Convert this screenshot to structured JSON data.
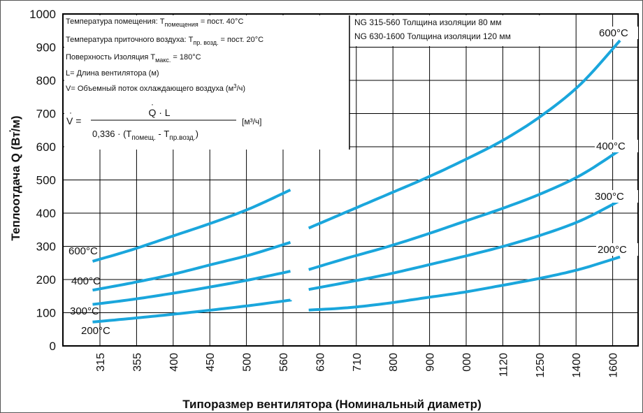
{
  "chart_data": {
    "type": "line",
    "xlabel": "Типоразмер вентилятора (Номинальный диаметр)",
    "ylabel": "Теплоотдача Q (Вт/м)",
    "categories": [
      "315",
      "355",
      "400",
      "450",
      "500",
      "560",
      "630",
      "710",
      "800",
      "900",
      "000",
      "1120",
      "1250",
      "1400",
      "1600"
    ],
    "ylim": [
      0,
      1000
    ],
    "yticks": [
      "0",
      "100",
      "200",
      "300",
      "400",
      "500",
      "600",
      "700",
      "800",
      "900",
      "1000"
    ],
    "grid": true,
    "line_color": "#1aa6dc",
    "series": [
      {
        "name": "600°C",
        "groups": [
          {
            "x0": -0.2,
            "x1": 5.2,
            "values": [
              255,
              290,
              330,
              370,
              415,
              470
            ]
          },
          {
            "x0": 5.7,
            "x1": 14.2,
            "values": [
              355,
              405,
              455,
              505,
              560,
              620,
              695,
              790,
              920
            ]
          }
        ]
      },
      {
        "name": "400°C",
        "groups": [
          {
            "x0": -0.2,
            "x1": 5.2,
            "values": [
              168,
              190,
              215,
              245,
              275,
              312
            ]
          },
          {
            "x0": 5.7,
            "x1": 14.2,
            "values": [
              230,
              265,
              298,
              335,
              375,
              415,
              460,
              515,
              590
            ]
          }
        ]
      },
      {
        "name": "300°C",
        "groups": [
          {
            "x0": -0.2,
            "x1": 5.2,
            "values": [
              125,
              140,
              158,
              178,
              200,
              225
            ]
          },
          {
            "x0": 5.7,
            "x1": 14.2,
            "values": [
              170,
              192,
              215,
              242,
              270,
              300,
              335,
              378,
              438
            ]
          }
        ]
      },
      {
        "name": "200°C",
        "groups": [
          {
            "x0": -0.2,
            "x1": 5.2,
            "values": [
              72,
              83,
              95,
              108,
              122,
              138
            ]
          },
          {
            "x0": 5.7,
            "x1": 14.2,
            "values": [
              108,
              115,
              128,
              145,
              162,
              183,
              205,
              232,
              268
            ]
          }
        ]
      }
    ]
  },
  "series_labels": {
    "left": {
      "s600": "600°C",
      "s400": "400°C",
      "s300": "300°C",
      "s200": "200°C"
    },
    "right": {
      "s600": "600°C",
      "s400": "400°C",
      "s300": "300°C",
      "s200": "200°C"
    }
  },
  "notes": {
    "temp_room_prefix": "Температура помещения: T",
    "temp_room_sub": "помещения",
    "temp_room_suffix": " = пост. 40°C",
    "temp_supply_prefix": "Температура приточного воздуха: T",
    "temp_supply_sub": "пр. возд.",
    "temp_supply_suffix": " = пост. 20°C",
    "surface_prefix": "Поверхность Изоляция T",
    "surface_sub": "макс.",
    "surface_suffix": " = 180°C",
    "length": "L= Длина вентилятора (м)",
    "flow_prefix": "V= Объемный поток охлаждающего воздуха (м",
    "flow_sup": "3",
    "flow_suffix": "/ч)"
  },
  "formula": {
    "lhs": "V =",
    "numerator": "Q · L",
    "denominator_prefix": "0,336 · (T",
    "denominator_sub1": "помещ.",
    "denominator_mid": " - T",
    "denominator_sub2": "пр.возд.",
    "denominator_suffix": ")",
    "units": "[м³/ч]"
  },
  "insulation": {
    "line1": "NG 315-560 Толщина изоляции 80 мм",
    "line2": "NG 630-1600 Толщина изоляции 120 мм"
  }
}
